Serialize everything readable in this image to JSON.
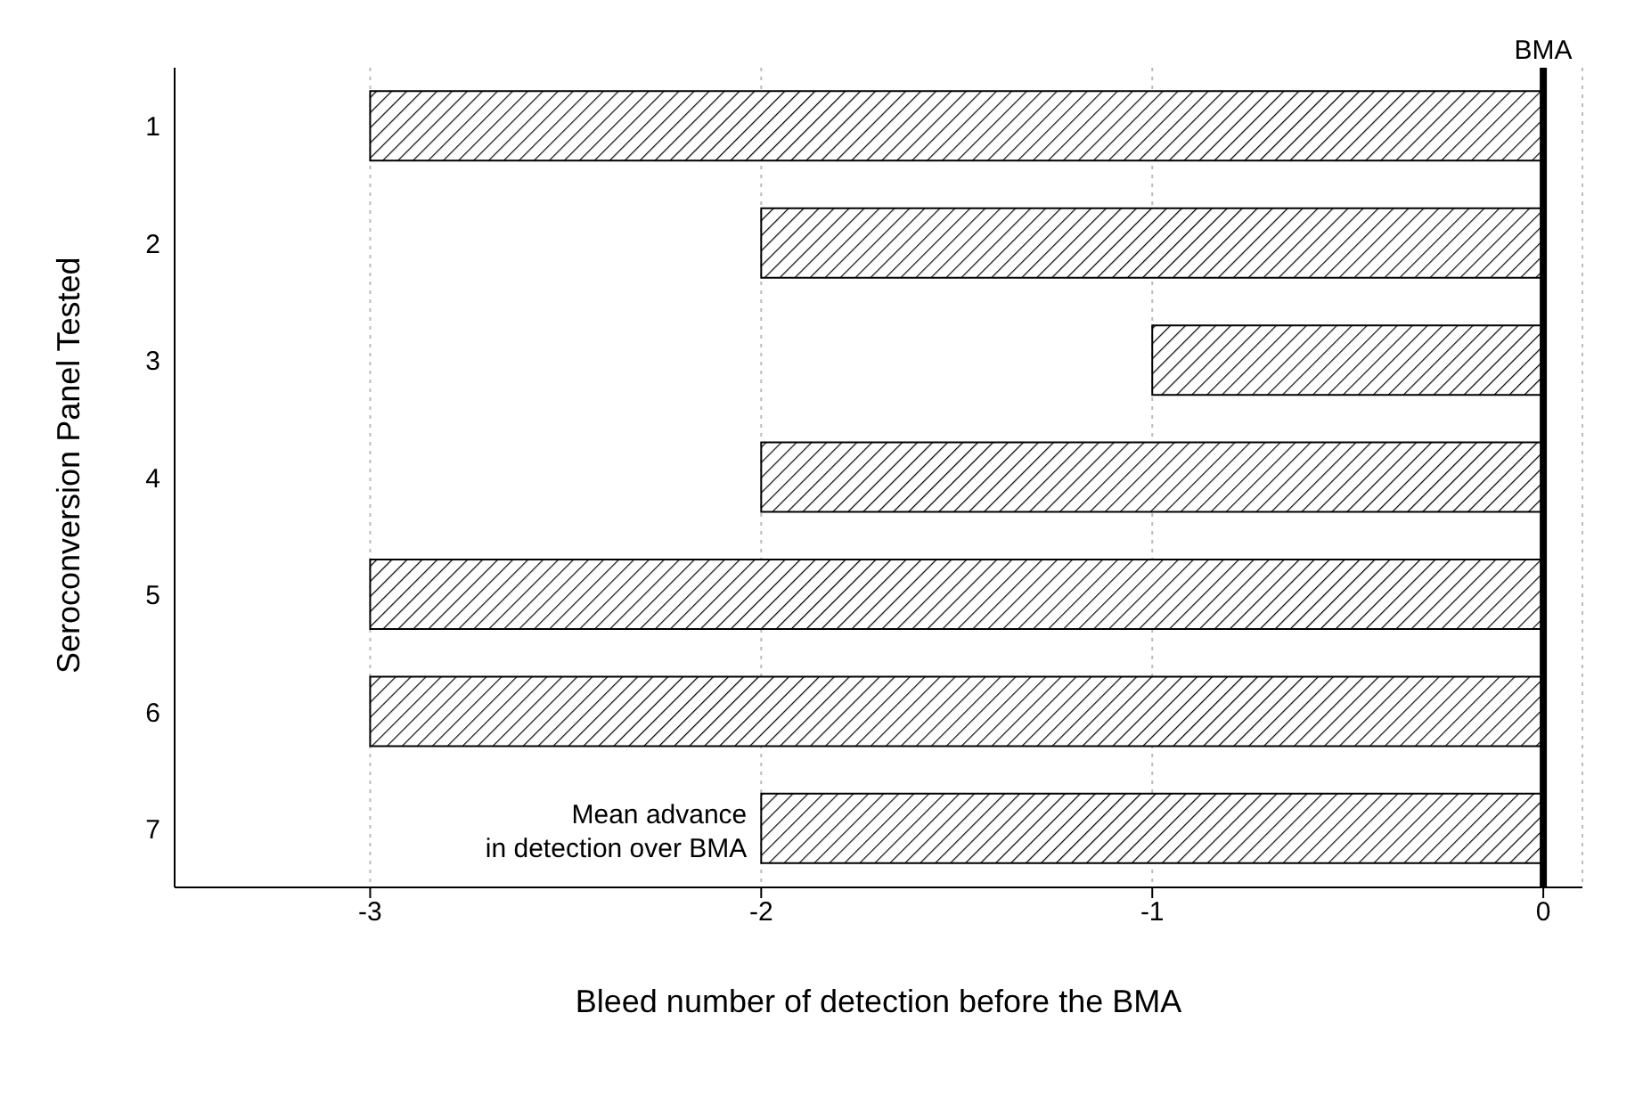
{
  "chart_data": {
    "type": "bar",
    "orientation": "horizontal",
    "xlabel": "Bleed number of detection before the BMA",
    "ylabel": "Seroconversion Panel Tested",
    "categories": [
      "1",
      "2",
      "3",
      "4",
      "5",
      "6",
      "7"
    ],
    "values": [
      -3,
      -2,
      -1,
      -2,
      -3,
      -3,
      -2
    ],
    "color": "#000000",
    "xlim": [
      -3.5,
      0.1
    ],
    "xticks": [
      -3,
      -2,
      -1,
      0
    ],
    "grid": "x",
    "ref_lines": [
      {
        "axis": "x",
        "value": 0,
        "label": "BMA",
        "color": "#000000"
      }
    ],
    "annotations": [
      "Mean advance in detection over BMA"
    ]
  }
}
